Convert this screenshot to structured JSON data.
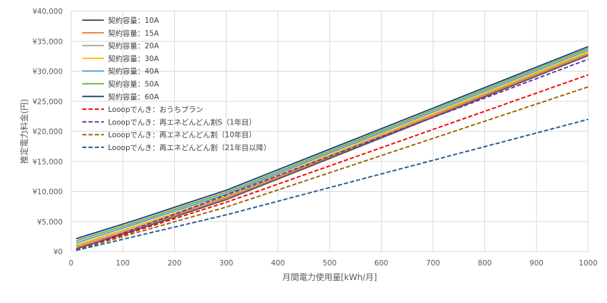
{
  "chart_data": {
    "type": "line",
    "title": "",
    "xlabel": "月間電力使用量[kWh/月]",
    "ylabel": "推定電力料金(円)",
    "xlim": [
      0,
      1000
    ],
    "ylim": [
      0,
      40000
    ],
    "x_ticks": [
      0,
      100,
      200,
      300,
      400,
      500,
      600,
      700,
      800,
      900,
      1000
    ],
    "x_tick_labels": [
      "0",
      "100",
      "200",
      "300",
      "400",
      "500",
      "600",
      "700",
      "800",
      "900",
      "1000"
    ],
    "y_ticks": [
      0,
      5000,
      10000,
      15000,
      20000,
      25000,
      30000,
      35000,
      40000
    ],
    "y_tick_labels": [
      "¥0",
      "¥5,000",
      "¥10,000",
      "¥15,000",
      "¥20,000",
      "¥25,000",
      "¥30,000",
      "¥35,000",
      "¥40,000"
    ],
    "grid": true,
    "legend_position": "top-left",
    "x": [
      10,
      120,
      300,
      1000
    ],
    "series": [
      {
        "name": "契約容量：10A",
        "color": "#44546a",
        "dashed": false,
        "values": [
          450,
          3450,
          8650,
          32600
        ]
      },
      {
        "name": "契約容量：15A",
        "color": "#ed7d31",
        "dashed": false,
        "values": [
          720,
          3720,
          8900,
          32850
        ]
      },
      {
        "name": "契約容量：20A",
        "color": "#a5a5a5",
        "dashed": false,
        "values": [
          1000,
          4000,
          9150,
          33100
        ]
      },
      {
        "name": "契約容量：30A",
        "color": "#ffc000",
        "dashed": false,
        "values": [
          1100,
          4100,
          9250,
          33200
        ]
      },
      {
        "name": "契約容量：40A",
        "color": "#5b9bd5",
        "dashed": false,
        "values": [
          1450,
          4450,
          9550,
          33500
        ]
      },
      {
        "name": "契約容量：50A",
        "color": "#70ad47",
        "dashed": false,
        "values": [
          1800,
          4750,
          9850,
          33800
        ]
      },
      {
        "name": "契約容量：60A",
        "color": "#264478",
        "dashed": false,
        "values": [
          2150,
          5100,
          10200,
          34100
        ]
      },
      {
        "name": "Looopでんき：おうちプラン",
        "color": "#ff0000",
        "dashed": true,
        "values": [
          300,
          3300,
          8200,
          29400
        ]
      },
      {
        "name": "Looopでんき：再エネどんどん割S（1年目）",
        "color": "#7030a0",
        "dashed": true,
        "values": [
          300,
          3650,
          9400,
          32000
        ]
      },
      {
        "name": "Looopでんき：再エネどんどん割（10年目）",
        "color": "#9c6500",
        "dashed": true,
        "values": [
          250,
          3000,
          7400,
          27400
        ]
      },
      {
        "name": "Looopでんき：再エネどんどん割（21年目以降）",
        "color": "#255e91",
        "dashed": true,
        "values": [
          200,
          2450,
          6100,
          22000
        ]
      }
    ]
  }
}
